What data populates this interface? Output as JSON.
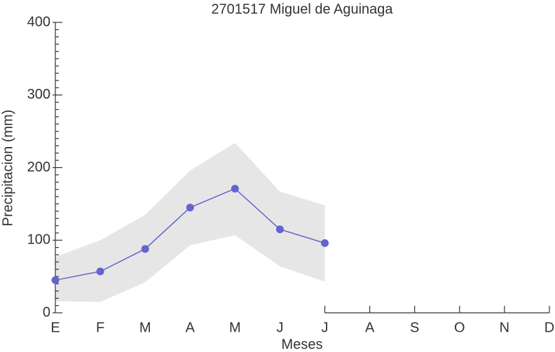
{
  "chart_data": {
    "type": "line",
    "title": "2701517 Miguel de Aguinaga",
    "x_label": "Meses",
    "y_label": "Precipitacion (mm)",
    "categories": [
      "E",
      "F",
      "M",
      "A",
      "M",
      "J",
      "J",
      "A",
      "S",
      "O",
      "N",
      "D"
    ],
    "values": [
      45,
      57,
      88,
      145,
      171,
      115,
      96,
      null,
      null,
      null,
      null,
      null
    ],
    "lower": [
      16,
      15,
      42,
      93,
      107,
      64,
      43,
      null,
      null,
      null,
      null,
      null
    ],
    "upper": [
      77,
      100,
      135,
      196,
      234,
      167,
      148,
      null,
      null,
      null,
      null,
      null
    ],
    "color": "#6464cc",
    "band_color": "#e6e6e6",
    "ylim": [
      0,
      400
    ],
    "yticks": [
      0,
      100,
      200,
      300,
      400
    ]
  }
}
